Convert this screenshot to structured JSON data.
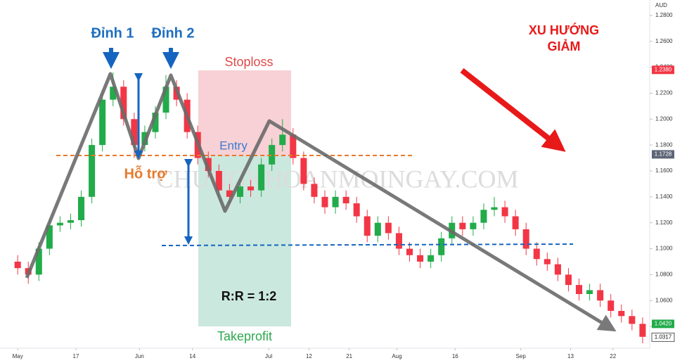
{
  "chart_data": {
    "type": "candlestick",
    "currency": "AUD",
    "open": [
      1.09,
      1.085,
      1.08,
      1.1,
      1.118,
      1.12,
      1.122,
      1.14,
      1.18,
      1.215,
      1.225,
      1.2,
      1.18,
      1.19,
      1.205,
      1.225,
      1.215,
      1.19,
      1.17,
      1.16,
      1.145,
      1.14,
      1.148,
      1.145,
      1.165,
      1.18,
      1.188,
      1.17,
      1.15,
      1.14,
      1.132,
      1.14,
      1.135,
      1.125,
      1.11,
      1.12,
      1.112,
      1.1,
      1.095,
      1.09,
      1.095,
      1.108,
      1.12,
      1.115,
      1.12,
      1.13,
      1.132,
      1.125,
      1.115,
      1.1,
      1.092,
      1.088,
      1.08,
      1.072,
      1.065,
      1.068,
      1.06,
      1.052,
      1.048,
      1.042
    ],
    "high": [
      1.095,
      1.09,
      1.105,
      1.123,
      1.125,
      1.127,
      1.145,
      1.185,
      1.22,
      1.236,
      1.23,
      1.205,
      1.195,
      1.21,
      1.234,
      1.23,
      1.22,
      1.195,
      1.175,
      1.165,
      1.15,
      1.153,
      1.153,
      1.17,
      1.185,
      1.2,
      1.193,
      1.175,
      1.155,
      1.145,
      1.145,
      1.145,
      1.14,
      1.13,
      1.125,
      1.125,
      1.117,
      1.105,
      1.1,
      1.1,
      1.113,
      1.125,
      1.125,
      1.125,
      1.135,
      1.14,
      1.137,
      1.13,
      1.12,
      1.105,
      1.097,
      1.093,
      1.085,
      1.077,
      1.073,
      1.073,
      1.065,
      1.057,
      1.053,
      1.047
    ],
    "low": [
      1.08,
      1.073,
      1.075,
      1.095,
      1.113,
      1.115,
      1.117,
      1.135,
      1.175,
      1.21,
      1.195,
      1.17,
      1.175,
      1.185,
      1.2,
      1.21,
      1.185,
      1.165,
      1.155,
      1.14,
      1.135,
      1.135,
      1.14,
      1.14,
      1.16,
      1.175,
      1.165,
      1.145,
      1.135,
      1.127,
      1.127,
      1.13,
      1.12,
      1.105,
      1.105,
      1.107,
      1.095,
      1.09,
      1.085,
      1.085,
      1.09,
      1.103,
      1.11,
      1.11,
      1.115,
      1.125,
      1.12,
      1.11,
      1.095,
      1.087,
      1.083,
      1.075,
      1.067,
      1.06,
      1.06,
      1.055,
      1.047,
      1.043,
      1.037,
      1.027
    ],
    "close": [
      1.085,
      1.08,
      1.1,
      1.118,
      1.12,
      1.122,
      1.14,
      1.18,
      1.215,
      1.225,
      1.2,
      1.18,
      1.19,
      1.205,
      1.225,
      1.215,
      1.19,
      1.17,
      1.16,
      1.145,
      1.14,
      1.148,
      1.145,
      1.165,
      1.18,
      1.188,
      1.17,
      1.15,
      1.14,
      1.132,
      1.14,
      1.135,
      1.125,
      1.11,
      1.12,
      1.112,
      1.1,
      1.095,
      1.09,
      1.095,
      1.108,
      1.12,
      1.115,
      1.12,
      1.13,
      1.132,
      1.125,
      1.115,
      1.1,
      1.092,
      1.088,
      1.08,
      1.072,
      1.065,
      1.068,
      1.06,
      1.052,
      1.048,
      1.042,
      1.032
    ],
    "up_color": "#22ab4a",
    "down_color": "#f23645",
    "xlim": [
      -1.67,
      59.67
    ],
    "xticks": [
      {
        "value": 0,
        "label": "May"
      },
      {
        "value": 5.5,
        "label": "17"
      },
      {
        "value": 11.5,
        "label": "Jun"
      },
      {
        "value": 16.5,
        "label": "14"
      },
      {
        "value": 23.7,
        "label": "Jul"
      },
      {
        "value": 27.5,
        "label": "12"
      },
      {
        "value": 31.3,
        "label": "21"
      },
      {
        "value": 35.8,
        "label": "Aug"
      },
      {
        "value": 41.3,
        "label": "16"
      },
      {
        "value": 47.5,
        "label": "Sep"
      },
      {
        "value": 52.2,
        "label": "13"
      },
      {
        "value": 56.2,
        "label": "22"
      }
    ],
    "ylim": [
      1.0232,
      1.2919
    ],
    "yticks": [
      {
        "value": 1.04,
        "label": "1.0400"
      },
      {
        "value": 1.06,
        "label": "1.0600"
      },
      {
        "value": 1.08,
        "label": "1.0800"
      },
      {
        "value": 1.1,
        "label": "1.1000"
      },
      {
        "value": 1.12,
        "label": "1.1200"
      },
      {
        "value": 1.14,
        "label": "1.1400"
      },
      {
        "value": 1.16,
        "label": "1.1600"
      },
      {
        "value": 1.18,
        "label": "1.1800"
      },
      {
        "value": 1.2,
        "label": "1.2000"
      },
      {
        "value": 1.22,
        "label": "1.2200"
      },
      {
        "value": 1.24,
        "label": "1.2400"
      },
      {
        "value": 1.26,
        "label": "1.2600"
      },
      {
        "value": 1.28,
        "label": "1.2800"
      }
    ],
    "price_tags": [
      {
        "value": 1.238,
        "label": "1.2380",
        "color": "#f23645"
      },
      {
        "value": 1.1728,
        "label": "1.1728",
        "color": "#5d6677"
      },
      {
        "value": 1.042,
        "label": "1.0420",
        "color": "#22ab4a"
      },
      {
        "value": 1.0317,
        "label": "1.0317",
        "color": "#ffffff"
      }
    ],
    "annotations": {
      "peak1": "Đỉnh 1",
      "peak2": "Đỉnh 2",
      "stoploss": "Stoploss",
      "entry": "Entry",
      "support": "Hỗ trợ",
      "rr": "R:R = 1:2",
      "takeprofit": "Takeprofit",
      "trend_line1": "XU HƯỚNG",
      "trend_line2": "GIẢM",
      "watermark": "CHUNGKHOANMOINGAY.COM"
    }
  }
}
